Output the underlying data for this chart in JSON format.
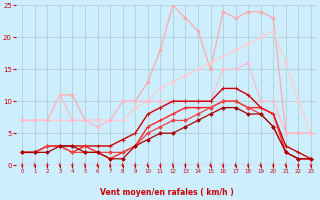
{
  "bg_color": "#cceeff",
  "grid_color": "#aacccc",
  "xlabel": "Vent moyen/en rafales ( km/h )",
  "xlabel_color": "#cc0000",
  "tick_color": "#cc0000",
  "xlim": [
    -0.5,
    23.5
  ],
  "ylim": [
    0,
    25
  ],
  "xticks": [
    0,
    1,
    2,
    3,
    4,
    5,
    6,
    7,
    8,
    9,
    10,
    11,
    12,
    13,
    14,
    15,
    16,
    17,
    18,
    19,
    20,
    21,
    22,
    23
  ],
  "yticks": [
    0,
    5,
    10,
    15,
    20,
    25
  ],
  "lines": [
    {
      "x": [
        0,
        1,
        2,
        3,
        4,
        5,
        6,
        7,
        8,
        9,
        10,
        11,
        12,
        13,
        14,
        15,
        16,
        17,
        18,
        19,
        20,
        21,
        22,
        23
      ],
      "y": [
        7,
        7,
        7,
        11,
        11,
        7,
        7,
        7,
        10,
        10,
        13,
        18,
        25,
        23,
        21,
        15,
        24,
        23,
        24,
        24,
        23,
        5,
        5,
        5
      ],
      "color": "#ffaaaa",
      "lw": 0.9,
      "marker": "D",
      "ms": 1.8
    },
    {
      "x": [
        0,
        1,
        2,
        3,
        4,
        5,
        6,
        7,
        8,
        9,
        10,
        11,
        12,
        13,
        14,
        15,
        16,
        17,
        18,
        19,
        20,
        21,
        22,
        23
      ],
      "y": [
        7,
        7,
        7,
        7,
        7,
        7,
        7,
        7,
        7,
        9,
        10,
        12,
        13,
        14,
        15,
        16,
        17,
        18,
        19,
        20,
        21,
        16,
        10,
        5
      ],
      "color": "#ffcccc",
      "lw": 0.9,
      "marker": "D",
      "ms": 1.8
    },
    {
      "x": [
        0,
        1,
        2,
        3,
        4,
        5,
        6,
        7,
        8,
        9,
        10,
        11,
        12,
        13,
        14,
        15,
        16,
        17,
        18,
        19,
        20,
        21,
        22,
        23
      ],
      "y": [
        7,
        7,
        7,
        11,
        7,
        7,
        6,
        7,
        10,
        10,
        10,
        10,
        10,
        10,
        10,
        10,
        15,
        15,
        16,
        10,
        10,
        5,
        5,
        5
      ],
      "color": "#ffbbcc",
      "lw": 0.9,
      "marker": "D",
      "ms": 1.8
    },
    {
      "x": [
        0,
        1,
        2,
        3,
        4,
        5,
        6,
        7,
        8,
        9,
        10,
        11,
        12,
        13,
        14,
        15,
        16,
        17,
        18,
        19,
        20,
        21,
        22,
        23
      ],
      "y": [
        2,
        2,
        3,
        3,
        3,
        3,
        3,
        3,
        4,
        5,
        8,
        9,
        10,
        10,
        10,
        10,
        12,
        12,
        11,
        9,
        8,
        3,
        2,
        1
      ],
      "color": "#cc0000",
      "lw": 1.0,
      "marker": "+",
      "ms": 3.0
    },
    {
      "x": [
        0,
        1,
        2,
        3,
        4,
        5,
        6,
        7,
        8,
        9,
        10,
        11,
        12,
        13,
        14,
        15,
        16,
        17,
        18,
        19,
        20,
        21,
        22,
        23
      ],
      "y": [
        2,
        2,
        3,
        3,
        2,
        3,
        2,
        1,
        2,
        3,
        6,
        7,
        8,
        9,
        9,
        9,
        10,
        10,
        9,
        9,
        8,
        2,
        1,
        1
      ],
      "color": "#ff2222",
      "lw": 1.0,
      "marker": "+",
      "ms": 3.0
    },
    {
      "x": [
        0,
        1,
        2,
        3,
        4,
        5,
        6,
        7,
        8,
        9,
        10,
        11,
        12,
        13,
        14,
        15,
        16,
        17,
        18,
        19,
        20,
        21,
        22,
        23
      ],
      "y": [
        2,
        2,
        3,
        3,
        2,
        2,
        2,
        2,
        2,
        3,
        5,
        6,
        7,
        7,
        8,
        9,
        10,
        10,
        9,
        8,
        6,
        2,
        1,
        1
      ],
      "color": "#ee4444",
      "lw": 0.9,
      "marker": "D",
      "ms": 1.8
    },
    {
      "x": [
        0,
        1,
        2,
        3,
        4,
        5,
        6,
        7,
        8,
        9,
        10,
        11,
        12,
        13,
        14,
        15,
        16,
        17,
        18,
        19,
        20,
        21,
        22,
        23
      ],
      "y": [
        2,
        2,
        2,
        3,
        3,
        2,
        2,
        1,
        1,
        3,
        4,
        5,
        5,
        6,
        7,
        8,
        9,
        9,
        8,
        8,
        6,
        2,
        1,
        1
      ],
      "color": "#aa0000",
      "lw": 0.9,
      "marker": "D",
      "ms": 1.8
    }
  ]
}
